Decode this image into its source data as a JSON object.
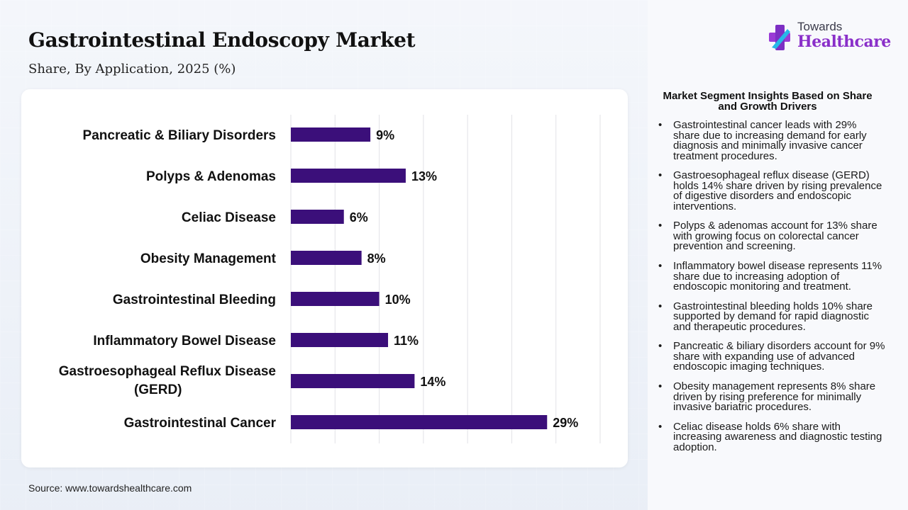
{
  "header": {
    "title": "Gastrointestinal Endoscopy Market",
    "subtitle": "Share, By Application, 2025 (%)"
  },
  "logo": {
    "line1": "Towards",
    "line2": "Healthcare",
    "icon": "plus-cross-icon"
  },
  "chart_data": {
    "type": "bar",
    "orientation": "horizontal",
    "categories": [
      "Pancreatic & Biliary Disorders",
      "Polyps & Adenomas",
      "Celiac Disease",
      "Obesity Management",
      "Gastrointestinal Bleeding",
      "Inflammatory Bowel Disease",
      "Gastroesophageal Reflux Disease (GERD)",
      "Gastrointestinal Cancer"
    ],
    "values": [
      9,
      13,
      6,
      8,
      10,
      11,
      14,
      29
    ],
    "data_labels": [
      "9%",
      "13%",
      "6%",
      "8%",
      "10%",
      "11%",
      "14%",
      "29%"
    ],
    "xlim": [
      0,
      35
    ],
    "grid": true,
    "bar_color": "#3b0f7a"
  },
  "insights": {
    "title": "Market Segment Insights Based on Share and Growth Drivers",
    "items": [
      "Gastrointestinal cancer leads with 29% share due to increasing demand for early diagnosis and minimally invasive cancer treatment procedures.",
      "Gastroesophageal reflux disease (GERD) holds 14% share driven by rising prevalence of digestive disorders and endoscopic interventions.",
      "Polyps & adenomas account for 13% share with growing focus on colorectal cancer prevention and screening.",
      "Inflammatory bowel disease represents 11% share due to increasing adoption of endoscopic monitoring and treatment.",
      "Gastrointestinal bleeding holds 10% share supported by demand for rapid diagnostic and therapeutic procedures.",
      "Pancreatic & biliary disorders account for 9% share with expanding use of advanced endoscopic imaging techniques.",
      "Obesity management represents 8% share driven by rising preference for minimally invasive bariatric procedures.",
      "Celiac disease holds 6% share with increasing awareness and diagnostic testing adoption."
    ]
  },
  "source": "Source: www.towardshealthcare.com"
}
